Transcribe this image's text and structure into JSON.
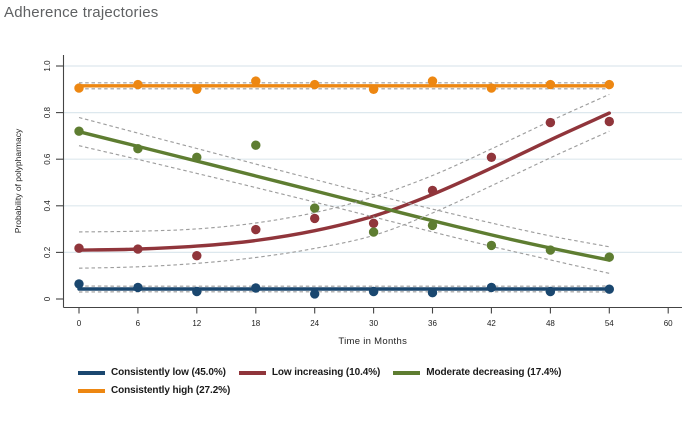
{
  "page": {
    "title": "Adherence trajectories"
  },
  "chart_data": {
    "type": "line",
    "title": "Adherence trajectories",
    "xlabel": "Time in Months",
    "ylabel": "Probability of polypharmacy",
    "xlim": [
      0,
      60
    ],
    "ylim": [
      0,
      1
    ],
    "x_ticks": [
      0,
      6,
      12,
      18,
      24,
      30,
      36,
      42,
      48,
      54,
      60
    ],
    "y_ticks": [
      0,
      0.2,
      0.4,
      0.6,
      0.8,
      1
    ],
    "y_tick_labels": [
      "0",
      "0.2",
      "0.4",
      "0.6",
      "0.8",
      "1.0"
    ],
    "grid": true,
    "legend_position": "bottom",
    "ci_style": "dashed-gray",
    "ci_color": "#9e9e9e",
    "x": [
      0,
      6,
      12,
      18,
      24,
      30,
      36,
      42,
      48,
      54
    ],
    "series": [
      {
        "name": "Consistently low (45.0%)",
        "color": "#1a476f",
        "points": [
          0.065,
          0.05,
          0.032,
          0.047,
          0.022,
          0.032,
          0.027,
          0.05,
          0.032,
          0.042
        ],
        "fit": [
          0.043,
          0.043,
          0.043,
          0.043,
          0.043,
          0.043,
          0.043,
          0.043,
          0.043,
          0.043
        ],
        "ci_upper": [
          0.056,
          0.055,
          0.055,
          0.055,
          0.055,
          0.055,
          0.055,
          0.055,
          0.055,
          0.056
        ],
        "ci_lower": [
          0.03,
          0.031,
          0.031,
          0.031,
          0.031,
          0.031,
          0.031,
          0.031,
          0.031,
          0.03
        ]
      },
      {
        "name": "Low increasing (10.4%)",
        "color": "#90353b",
        "points": [
          0.218,
          0.214,
          0.186,
          0.298,
          0.346,
          0.325,
          0.466,
          0.608,
          0.757,
          0.762
        ],
        "fit": [
          0.21,
          0.214,
          0.227,
          0.251,
          0.293,
          0.356,
          0.449,
          0.562,
          0.683,
          0.798
        ],
        "ci_upper": [
          0.288,
          0.291,
          0.301,
          0.326,
          0.371,
          0.438,
          0.53,
          0.644,
          0.764,
          0.878
        ],
        "ci_lower": [
          0.132,
          0.138,
          0.153,
          0.178,
          0.217,
          0.273,
          0.369,
          0.486,
          0.606,
          0.72
        ]
      },
      {
        "name": "Moderate decreasing (17.4%)",
        "color": "#5e7d31",
        "points": [
          0.72,
          0.645,
          0.608,
          0.66,
          0.39,
          0.287,
          0.316,
          0.23,
          0.21,
          0.18
        ],
        "fit": [
          0.718,
          0.655,
          0.592,
          0.528,
          0.464,
          0.4,
          0.336,
          0.275,
          0.219,
          0.167
        ],
        "ci_upper": [
          0.779,
          0.712,
          0.646,
          0.579,
          0.513,
          0.448,
          0.386,
          0.326,
          0.271,
          0.224
        ],
        "ci_lower": [
          0.658,
          0.599,
          0.539,
          0.478,
          0.416,
          0.352,
          0.288,
          0.226,
          0.168,
          0.11
        ]
      },
      {
        "name": "Consistently high (27.2%)",
        "color": "#ed8712",
        "points": [
          0.905,
          0.92,
          0.9,
          0.935,
          0.92,
          0.9,
          0.935,
          0.905,
          0.92,
          0.92
        ],
        "fit": [
          0.915,
          0.915,
          0.915,
          0.915,
          0.915,
          0.915,
          0.915,
          0.915,
          0.915,
          0.915
        ],
        "ci_upper": [
          0.928,
          0.928,
          0.928,
          0.928,
          0.928,
          0.928,
          0.928,
          0.928,
          0.928,
          0.928
        ],
        "ci_lower": [
          0.902,
          0.902,
          0.902,
          0.902,
          0.902,
          0.902,
          0.902,
          0.902,
          0.902,
          0.902
        ]
      }
    ],
    "legend_rows": [
      [
        0,
        1,
        2
      ],
      [
        3
      ]
    ]
  }
}
